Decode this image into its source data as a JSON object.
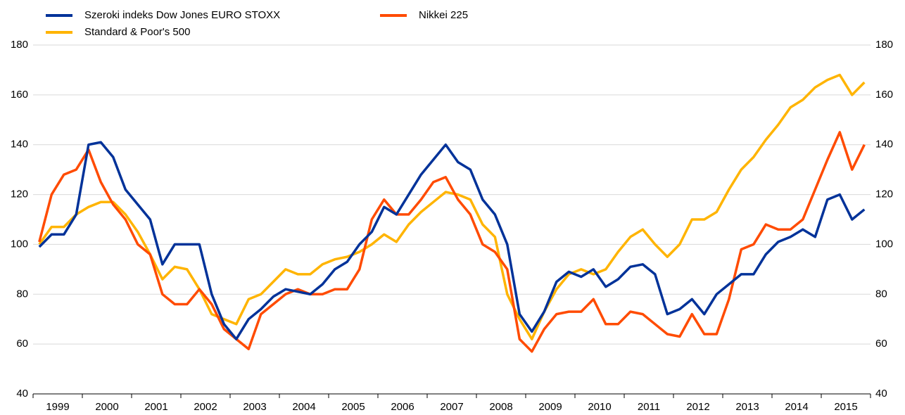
{
  "chart_data": {
    "type": "line",
    "categories": [
      null,
      "1999",
      null,
      null,
      null,
      "2000",
      null,
      null,
      null,
      "2001",
      null,
      null,
      null,
      "2002",
      null,
      null,
      null,
      "2003",
      null,
      null,
      null,
      "2004",
      null,
      null,
      null,
      "2005",
      null,
      null,
      null,
      "2006",
      null,
      null,
      null,
      "2007",
      null,
      null,
      null,
      "2008",
      null,
      null,
      null,
      "2009",
      null,
      null,
      null,
      "2010",
      null,
      null,
      null,
      "2011",
      null,
      null,
      null,
      "2012",
      null,
      null,
      null,
      "2013",
      null,
      null,
      null,
      "2014",
      null,
      null,
      null,
      "2015",
      null,
      null
    ],
    "series": [
      {
        "name": "Szeroki indeks Dow Jones EURO STOXX",
        "color": "#003299",
        "values": [
          99,
          104,
          104,
          112,
          140,
          141,
          135,
          122,
          116,
          110,
          92,
          100,
          100,
          100,
          80,
          68,
          62,
          70,
          74,
          79,
          82,
          81,
          80,
          84,
          90,
          93,
          100,
          105,
          115,
          112,
          120,
          128,
          134,
          140,
          133,
          130,
          118,
          112,
          100,
          72,
          65,
          73,
          85,
          89,
          87,
          90,
          83,
          86,
          91,
          92,
          88,
          72,
          74,
          78,
          72,
          80,
          84,
          88,
          88,
          96,
          101,
          103,
          106,
          103,
          118,
          120,
          110,
          114
        ]
      },
      {
        "name": "Nikkei 225",
        "color": "#ff4b00",
        "values": [
          101,
          120,
          128,
          130,
          138,
          125,
          116,
          110,
          100,
          96,
          80,
          76,
          76,
          82,
          76,
          66,
          62,
          58,
          72,
          76,
          80,
          82,
          80,
          80,
          82,
          82,
          90,
          110,
          118,
          112,
          112,
          118,
          125,
          127,
          118,
          112,
          100,
          97,
          90,
          62,
          57,
          66,
          72,
          73,
          73,
          78,
          68,
          68,
          73,
          72,
          68,
          64,
          63,
          72,
          64,
          64,
          78,
          98,
          100,
          108,
          106,
          106,
          110,
          122,
          134,
          145,
          130,
          140
        ]
      },
      {
        "name": "Standard & Poor's 500",
        "color": "#ffb400",
        "values": [
          100,
          107,
          107,
          112,
          115,
          117,
          117,
          112,
          105,
          96,
          86,
          91,
          90,
          82,
          72,
          70,
          68,
          78,
          80,
          85,
          90,
          88,
          88,
          92,
          94,
          95,
          97,
          100,
          104,
          101,
          108,
          113,
          117,
          121,
          120,
          118,
          108,
          103,
          80,
          70,
          62,
          73,
          82,
          88,
          90,
          88,
          90,
          97,
          103,
          106,
          100,
          95,
          100,
          110,
          110,
          113,
          122,
          130,
          135,
          142,
          148,
          155,
          158,
          163,
          166,
          168,
          160,
          165
        ]
      }
    ],
    "ylim": [
      40,
      180
    ],
    "yticks": [
      40,
      60,
      80,
      100,
      120,
      140,
      160,
      180
    ],
    "grid": true
  }
}
